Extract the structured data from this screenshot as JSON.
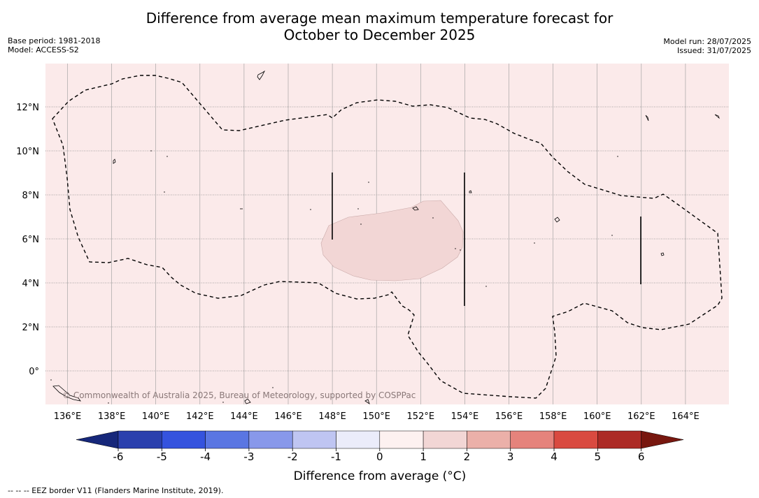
{
  "header": {
    "title_line1": "Difference from average mean maximum temperature forecast for",
    "title_line2": "October to December 2025",
    "base_period": "Base period: 1981-2018",
    "model": "Model: ACCESS-S2",
    "model_run": "Model run: 28/07/2025",
    "issued": "Issued: 31/07/2025"
  },
  "map": {
    "lon_labels": [
      "136°E",
      "138°E",
      "140°E",
      "142°E",
      "144°E",
      "146°E",
      "148°E",
      "150°E",
      "152°E",
      "154°E",
      "156°E",
      "158°E",
      "160°E",
      "162°E",
      "164°E"
    ],
    "lat_labels": [
      "12°N",
      "10°N",
      "8°N",
      "6°N",
      "4°N",
      "2°N",
      "0°"
    ],
    "copyright": "© Commonwealth of Australia 2025, Bureau of Meteorology, supported by COSPPac",
    "background_color": "#fbeaea",
    "anomaly_patch_color": "#f2d6d5",
    "eez_line_color": "#000000"
  },
  "colorbar": {
    "label": "Difference from average (°C)",
    "ticks": [
      "-6",
      "-5",
      "-4",
      "-3",
      "-2",
      "-1",
      "0",
      "1",
      "2",
      "3",
      "4",
      "5",
      "6"
    ],
    "colors": [
      "#16277a",
      "#2b40ad",
      "#3553de",
      "#5a76e2",
      "#8898ea",
      "#bfc5f2",
      "#ebecfa",
      "#fdf1f0",
      "#f2d6d5",
      "#ebb0a9",
      "#e5837c",
      "#d94a40",
      "#ac2b26",
      "#78170f"
    ]
  },
  "footnote": "--  --  -- EEZ border V11 (Flanders Marine Institute, 2019)."
}
